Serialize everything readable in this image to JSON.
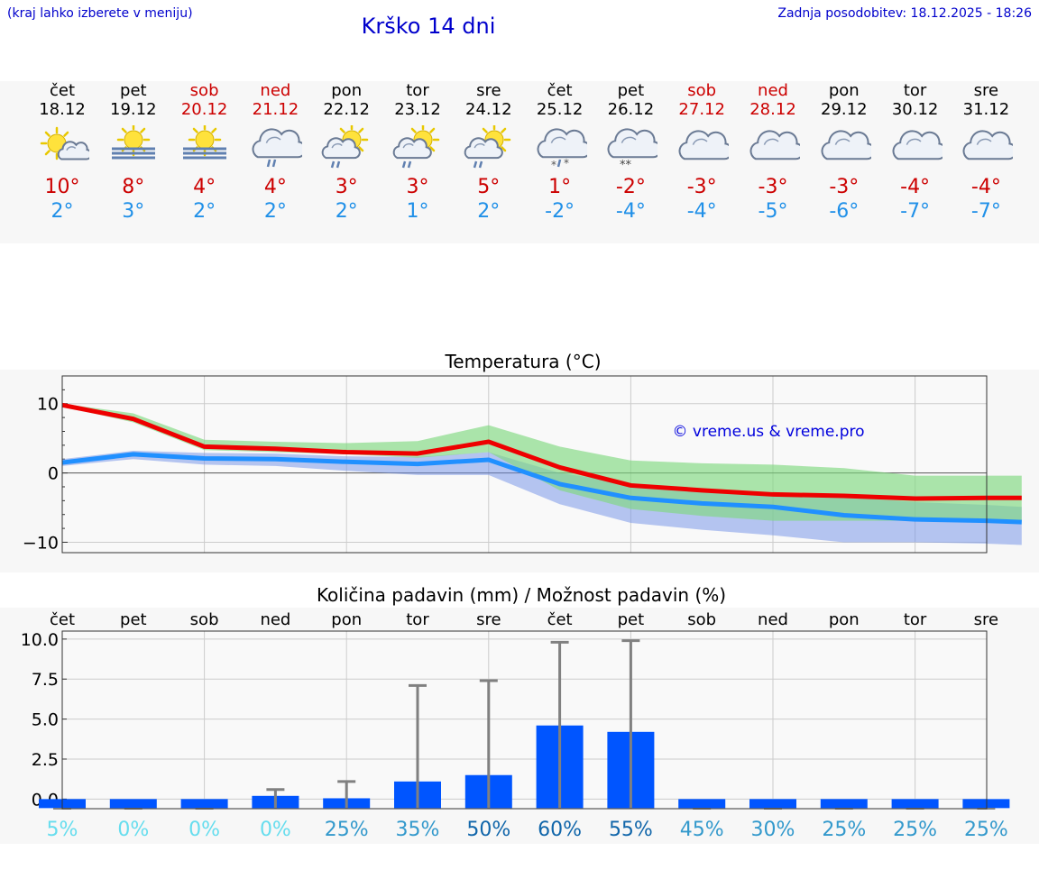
{
  "header": {
    "location_hint": "(kraj lahko izberete v meniju)",
    "title": "Krško 14 dni",
    "updated": "Zadnja posodobitev: 18.12.2025 - 18:26"
  },
  "colors": {
    "accent": "#0000cc",
    "weekend": "#cc0000",
    "normal_day": "#000000",
    "max_temp": "#cc0000",
    "min_temp": "#2090e8"
  },
  "days": [
    {
      "name": "čet",
      "date": "18.12",
      "weekend": false,
      "icon": "sun-cloud-icon",
      "max": "10°",
      "min": "2°"
    },
    {
      "name": "pet",
      "date": "19.12",
      "weekend": false,
      "icon": "sun-fog-icon",
      "max": "8°",
      "min": "3°"
    },
    {
      "name": "sob",
      "date": "20.12",
      "weekend": true,
      "icon": "sun-fog-icon",
      "max": "4°",
      "min": "2°"
    },
    {
      "name": "ned",
      "date": "21.12",
      "weekend": true,
      "icon": "cloud-rain-icon",
      "max": "4°",
      "min": "2°"
    },
    {
      "name": "pon",
      "date": "22.12",
      "weekend": false,
      "icon": "sun-cloud-rain-icon",
      "max": "3°",
      "min": "2°"
    },
    {
      "name": "tor",
      "date": "23.12",
      "weekend": false,
      "icon": "sun-cloud-rain-icon",
      "max": "3°",
      "min": "1°"
    },
    {
      "name": "sre",
      "date": "24.12",
      "weekend": false,
      "icon": "sun-cloud-rain-icon",
      "max": "5°",
      "min": "2°"
    },
    {
      "name": "čet",
      "date": "25.12",
      "weekend": false,
      "icon": "cloud-sleet-icon",
      "max": "1°",
      "min": "-2°"
    },
    {
      "name": "pet",
      "date": "26.12",
      "weekend": false,
      "icon": "cloud-snow-icon",
      "max": "-2°",
      "min": "-4°"
    },
    {
      "name": "sob",
      "date": "27.12",
      "weekend": true,
      "icon": "cloud-icon",
      "max": "-3°",
      "min": "-4°"
    },
    {
      "name": "ned",
      "date": "28.12",
      "weekend": true,
      "icon": "cloud-icon",
      "max": "-3°",
      "min": "-5°"
    },
    {
      "name": "pon",
      "date": "29.12",
      "weekend": false,
      "icon": "cloud-icon",
      "max": "-3°",
      "min": "-6°"
    },
    {
      "name": "tor",
      "date": "30.12",
      "weekend": false,
      "icon": "cloud-icon",
      "max": "-4°",
      "min": "-7°"
    },
    {
      "name": "sre",
      "date": "31.12",
      "weekend": false,
      "icon": "cloud-icon",
      "max": "-4°",
      "min": "-7°"
    }
  ],
  "chart_data": [
    {
      "type": "line",
      "title": "Temperatura (°C)",
      "watermark": "© vreme.us & vreme.pro",
      "ylim": [
        -11.5,
        14
      ],
      "yticks": [
        10,
        0,
        -10
      ],
      "ytick_labels": [
        "10",
        "0",
        "−10"
      ],
      "x": [
        0,
        1,
        2,
        3,
        4,
        5,
        6,
        7,
        8,
        9,
        10,
        11,
        12,
        13,
        13.5
      ],
      "series": [
        {
          "name": "max",
          "color": "#ee0000",
          "values": [
            9.8,
            7.8,
            3.8,
            3.5,
            3.0,
            2.8,
            4.5,
            0.8,
            -1.8,
            -2.5,
            -3.1,
            -3.3,
            -3.7,
            -3.6,
            -3.6
          ]
        },
        {
          "name": "min",
          "color": "#2090ff",
          "values": [
            1.5,
            2.7,
            2.1,
            2.0,
            1.6,
            1.3,
            1.9,
            -1.6,
            -3.6,
            -4.4,
            -4.9,
            -6.1,
            -6.7,
            -6.9,
            -7.1
          ]
        }
      ],
      "bands": [
        {
          "name": "max-range",
          "color": "#80d880",
          "opacity": 0.65,
          "upper": [
            10.0,
            8.6,
            4.8,
            4.5,
            4.3,
            4.6,
            6.9,
            3.8,
            1.8,
            1.4,
            1.2,
            0.7,
            -0.4,
            -0.4,
            -0.4
          ],
          "lower": [
            9.6,
            7.3,
            3.3,
            3.0,
            2.7,
            2.2,
            3.0,
            -2.5,
            -5.2,
            -6.2,
            -6.9,
            -6.9,
            -6.9,
            -7.0,
            -7.0
          ]
        },
        {
          "name": "min-range",
          "color": "#7090e8",
          "opacity": 0.5,
          "upper": [
            2.0,
            3.2,
            2.9,
            2.8,
            2.4,
            2.3,
            3.0,
            0.0,
            -1.5,
            -2.3,
            -2.8,
            -3.5,
            -4.2,
            -4.6,
            -4.9
          ]
        },
        {
          "name": "min-range-lower",
          "lower": [
            1.0,
            2.0,
            1.2,
            1.0,
            0.3,
            -0.3,
            -0.3,
            -4.5,
            -7.2,
            -8.2,
            -9.0,
            -10.0,
            -10.0,
            -10.2,
            -10.4
          ]
        }
      ]
    },
    {
      "type": "bar",
      "title": "Količina padavin (mm) / Možnost padavin (%)",
      "categories": [
        "čet",
        "pet",
        "sob",
        "ned",
        "pon",
        "tor",
        "sre",
        "čet",
        "pet",
        "sob",
        "ned",
        "pon",
        "tor",
        "sre"
      ],
      "ylim": [
        -0.6,
        10.5
      ],
      "yticks": [
        10,
        7.5,
        5,
        2.5,
        0
      ],
      "ytick_labels": [
        "10.0",
        "7.5",
        "5.0",
        "2.5",
        "0.0"
      ],
      "values": [
        0,
        0,
        0,
        0.2,
        0.05,
        1.1,
        1.5,
        4.6,
        4.2,
        0,
        0,
        0,
        0,
        0
      ],
      "error_max": [
        null,
        null,
        null,
        0.6,
        1.1,
        7.1,
        7.4,
        9.8,
        9.9,
        null,
        null,
        null,
        null,
        null
      ],
      "probability": [
        "5%",
        "0%",
        "0%",
        "0%",
        "25%",
        "35%",
        "50%",
        "60%",
        "55%",
        "45%",
        "30%",
        "25%",
        "25%",
        "25%"
      ],
      "probability_colors": [
        "#66ddee",
        "#66ddee",
        "#66ddee",
        "#66ddee",
        "#3399cc",
        "#3399cc",
        "#1166aa",
        "#1166aa",
        "#1166aa",
        "#3399cc",
        "#3399cc",
        "#3399cc",
        "#3399cc",
        "#3399cc"
      ],
      "bar_color": "#0055ff",
      "error_color": "#808080"
    }
  ]
}
